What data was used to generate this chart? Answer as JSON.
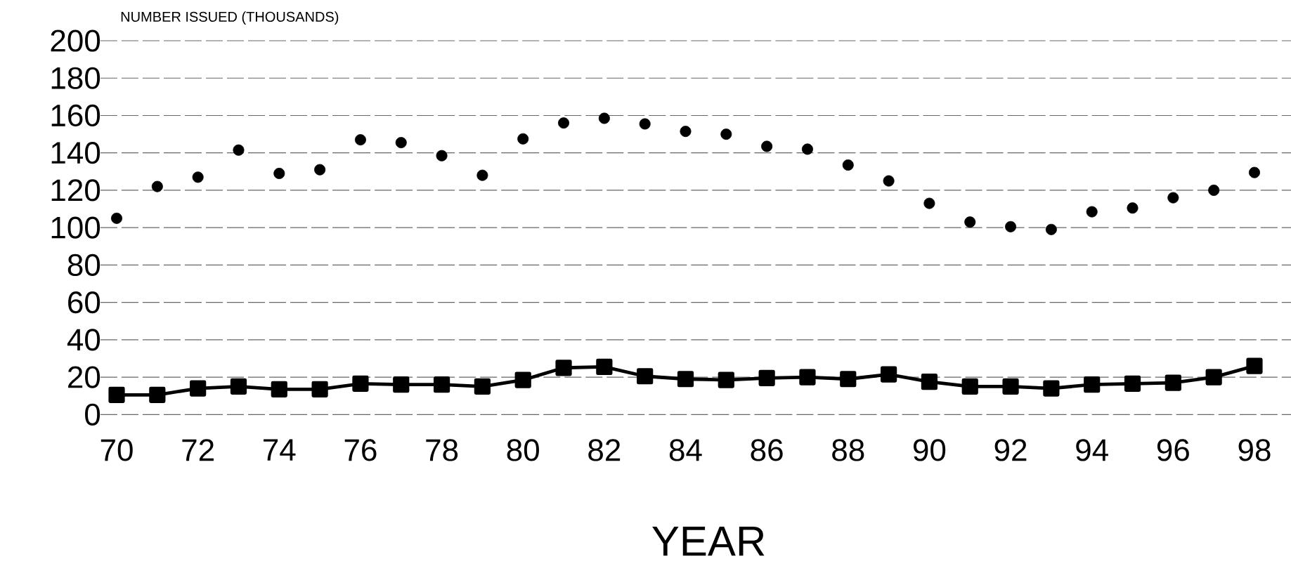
{
  "chart_data": {
    "type": "line",
    "xlabel": "YEAR",
    "ylabel": "NUMBER ISSUED (THOUSANDS)",
    "x": [
      70,
      71,
      72,
      73,
      74,
      75,
      76,
      77,
      78,
      79,
      80,
      81,
      82,
      83,
      84,
      85,
      86,
      87,
      88,
      89,
      90,
      91,
      92,
      93,
      94,
      95,
      96,
      97,
      98
    ],
    "series": [
      {
        "type": "scatter",
        "color": "#000000",
        "marker": "circle",
        "values": [
          105,
          122,
          127,
          141.5,
          129,
          131,
          147,
          145.5,
          138.5,
          128,
          147.5,
          156,
          158.5,
          155.5,
          151.5,
          150,
          143.5,
          142,
          133.5,
          125,
          113,
          103,
          100.5,
          99,
          108.5,
          110.5,
          116,
          120,
          129.5
        ]
      },
      {
        "color": "#000000",
        "marker": "square",
        "values": [
          10.5,
          10.5,
          14,
          15,
          13.5,
          13.5,
          16.5,
          16,
          16,
          15,
          18.5,
          25,
          25.5,
          20.5,
          19,
          18.5,
          19.5,
          20,
          19,
          21.5,
          17.5,
          15,
          15,
          14,
          16,
          16.5,
          17,
          20,
          26
        ]
      }
    ],
    "xlim": [
      69.6,
      98.9
    ],
    "ylim": [
      0,
      200
    ],
    "xticks": [
      70,
      72,
      74,
      76,
      78,
      80,
      82,
      84,
      86,
      88,
      90,
      92,
      94,
      96,
      98
    ],
    "yticks": [
      0,
      20,
      40,
      60,
      80,
      100,
      120,
      140,
      160,
      180,
      200
    ],
    "grid": "y"
  }
}
